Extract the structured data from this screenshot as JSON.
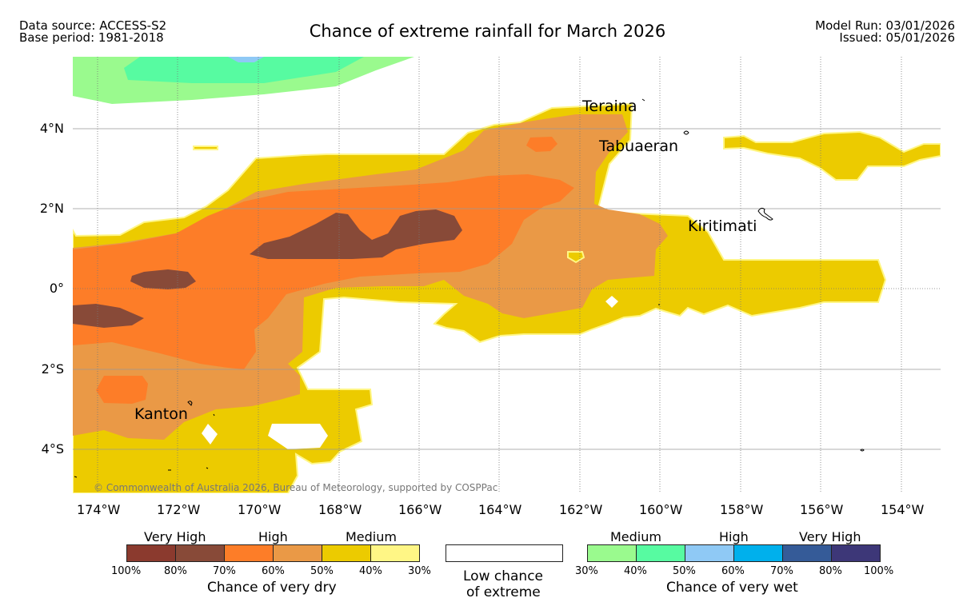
{
  "header": {
    "data_source": "Data source: ACCESS-S2",
    "base_period": "Base period: 1981-2018",
    "title": "Chance of extreme rainfall for March 2026",
    "model_run": "Model Run: 03/01/2026",
    "issued": "Issued: 05/01/2026"
  },
  "map": {
    "credit": "© Commonwealth of Australia 2026, Bureau of Meteorology, supported by COSPPac",
    "lon_ticks": [
      "174°W",
      "172°W",
      "170°W",
      "168°W",
      "166°W",
      "164°W",
      "162°W",
      "160°W",
      "158°W",
      "156°W",
      "154°W"
    ],
    "lat_ticks": [
      "4°N",
      "2°N",
      "0°",
      "2°S",
      "4°S"
    ],
    "places": {
      "teraina": "Teraina",
      "tabuaeran": "Tabuaeran",
      "kiritimati": "Kiritimati",
      "kanton": "Kanton"
    },
    "colors": {
      "dry_80_100": "#8b3a2e",
      "dry_70_80": "#884a38",
      "dry_60_70": "#fd7d28",
      "dry_50_60": "#ea9946",
      "dry_40_50": "#eccb00",
      "dry_30_40": "#fff685",
      "wet_30_40": "#9afa8e",
      "wet_40_50": "#57fba1",
      "wet_50_60": "#8fc9f5",
      "wet_60_70": "#00b0ec",
      "wet_70_80": "#355b98",
      "wet_80_100": "#3d3778"
    }
  },
  "legend": {
    "dry": {
      "categories": [
        "Very High",
        "High",
        "Medium"
      ],
      "ticks": [
        "100%",
        "80%",
        "70%",
        "60%",
        "50%",
        "40%",
        "30%"
      ],
      "title": "Chance of very dry"
    },
    "low": {
      "line1": "Low chance",
      "line2": "of extreme"
    },
    "wet": {
      "categories": [
        "Medium",
        "High",
        "Very High"
      ],
      "ticks": [
        "30%",
        "40%",
        "50%",
        "60%",
        "70%",
        "80%",
        "100%"
      ],
      "title": "Chance of very wet"
    }
  }
}
